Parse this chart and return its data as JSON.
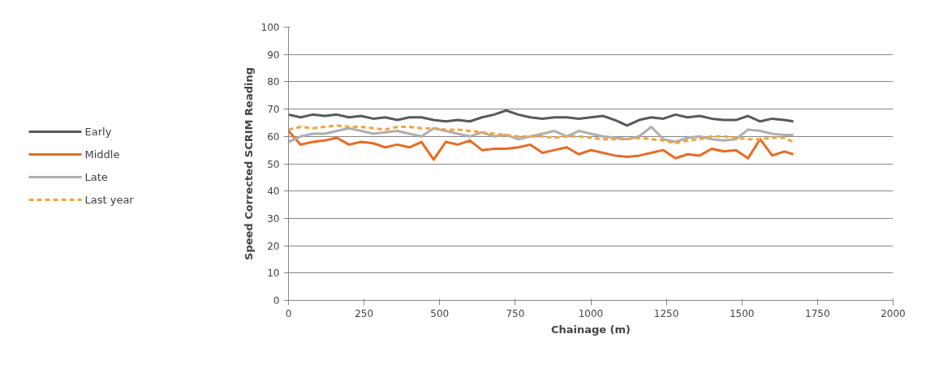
{
  "chart_data": {
    "type": "line",
    "xlabel": "Chainage (m)",
    "ylabel": "Speed Corrected SCRIM Reading",
    "x": [
      0,
      40,
      80,
      120,
      160,
      200,
      240,
      280,
      320,
      360,
      400,
      440,
      480,
      520,
      560,
      600,
      640,
      680,
      720,
      760,
      800,
      840,
      880,
      920,
      960,
      1000,
      1040,
      1080,
      1120,
      1160,
      1200,
      1240,
      1280,
      1320,
      1360,
      1400,
      1440,
      1480,
      1520,
      1560,
      1600,
      1640,
      1670
    ],
    "series": [
      {
        "name": "Early",
        "color": "#595959",
        "line_style": "solid",
        "values": [
          68,
          67,
          68,
          67.5,
          68,
          67,
          67.5,
          66.5,
          67,
          66,
          67,
          67,
          66,
          65.5,
          66,
          65.5,
          67,
          68,
          69.5,
          68,
          67,
          66.5,
          67,
          67,
          66.5,
          67,
          67.5,
          66,
          64,
          66,
          67,
          66.5,
          68,
          67,
          67.5,
          66.5,
          66,
          66,
          67.5,
          65.5,
          66.5,
          66,
          65.5
        ]
      },
      {
        "name": "Middle",
        "color": "#e96b23",
        "line_style": "solid",
        "values": [
          62,
          57,
          58,
          58.5,
          59.5,
          57,
          58,
          57.5,
          56,
          57,
          56,
          58,
          51.5,
          58,
          57,
          58.5,
          55,
          55.5,
          55.5,
          56,
          57,
          54,
          55,
          56,
          53.5,
          55,
          54,
          53,
          52.5,
          53,
          54,
          55,
          52,
          53.5,
          53,
          55.5,
          54.5,
          55,
          52,
          59,
          53,
          54.5,
          53.5
        ]
      },
      {
        "name": "Late",
        "color": "#aeaeae",
        "line_style": "solid",
        "values": [
          58,
          60,
          61,
          61,
          62,
          63,
          62,
          61,
          61.5,
          62,
          61,
          60,
          63,
          62,
          61,
          60,
          61.5,
          60,
          60.5,
          59,
          60,
          61,
          62,
          60,
          62,
          61,
          60,
          59.5,
          59,
          60,
          63.5,
          59,
          58,
          59.5,
          60,
          59,
          58.5,
          59,
          62.5,
          62,
          61,
          60.5,
          60.5
        ]
      },
      {
        "name": "Last year",
        "color": "#f3a43c",
        "line_style": "dashed",
        "values": [
          62.5,
          63.5,
          63,
          63.5,
          64,
          63.5,
          63.5,
          63,
          62.5,
          63.5,
          63.5,
          63,
          63,
          62.5,
          62.5,
          62,
          61.5,
          61,
          60.5,
          60,
          60,
          60,
          59.5,
          60,
          60,
          59.5,
          59,
          59,
          59,
          59.5,
          59,
          58.5,
          57.5,
          58.5,
          59,
          60,
          60,
          59.5,
          59,
          59,
          59.5,
          59.5,
          58
        ]
      }
    ],
    "xlim": [
      0,
      2000
    ],
    "xticks": [
      0,
      250,
      500,
      750,
      1000,
      1250,
      1500,
      1750,
      2000
    ],
    "ylim": [
      0,
      100
    ],
    "yticks": [
      0,
      10,
      20,
      30,
      40,
      50,
      60,
      70,
      80,
      90,
      100
    ],
    "grid": "y",
    "legend": "left",
    "marker": "none"
  }
}
